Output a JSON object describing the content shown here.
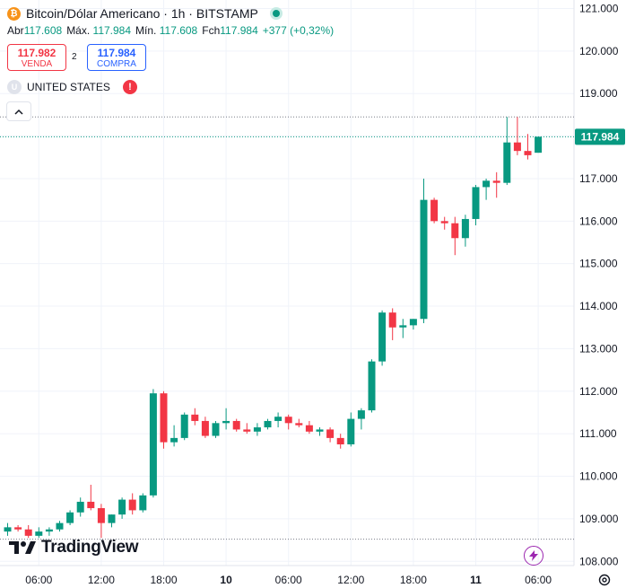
{
  "header": {
    "coin_glyph": "₿",
    "title": "Bitcoin/Dólar Americano · 1h · BITSTAMP",
    "ohlc": {
      "open_label": "Abr",
      "open": "117.608",
      "high_label": "Máx.",
      "high": "117.984",
      "low_label": "Mín.",
      "low": "117.608",
      "close_label": "Fch",
      "close": "117.984",
      "change": "+377 (+0,32%)"
    }
  },
  "trade": {
    "sell_price": "117.982",
    "sell_label": "VENDA",
    "spread": "2",
    "buy_price": "117.984",
    "buy_label": "COMPRA"
  },
  "country": {
    "badge": "U",
    "name": "UNITED STATES",
    "alert": "!"
  },
  "branding": {
    "logo_text": "TradingView"
  },
  "colors": {
    "up": "#089981",
    "down": "#f23645",
    "grid": "#f0f3fa",
    "text": "#131722"
  },
  "icons": {
    "collapse": "chevron-up-icon",
    "lightning": "lightning-icon",
    "settings": "gear-icon"
  },
  "chart_data": {
    "type": "candlestick",
    "title": "Bitcoin/Dólar Americano · 1h · BITSTAMP",
    "ylim": [
      107.9,
      121.2
    ],
    "y_ticks": [
      "108.000",
      "109.000",
      "110.000",
      "111.000",
      "112.000",
      "113.000",
      "114.000",
      "115.000",
      "116.000",
      "117.000",
      "118.000",
      "119.000",
      "120.000",
      "121.000"
    ],
    "y_tick_values": [
      108,
      109,
      110,
      111,
      112,
      113,
      114,
      115,
      116,
      117,
      118,
      119,
      120,
      121
    ],
    "x_ticks": [
      {
        "label": "06:00",
        "index": 3,
        "bold": false
      },
      {
        "label": "12:00",
        "index": 9,
        "bold": false
      },
      {
        "label": "18:00",
        "index": 15,
        "bold": false
      },
      {
        "label": "10",
        "index": 21,
        "bold": true
      },
      {
        "label": "06:00",
        "index": 27,
        "bold": false
      },
      {
        "label": "12:00",
        "index": 33,
        "bold": false
      },
      {
        "label": "18:00",
        "index": 39,
        "bold": false
      },
      {
        "label": "11",
        "index": 45,
        "bold": true
      },
      {
        "label": "06:00",
        "index": 51,
        "bold": false
      }
    ],
    "last_price": "117.984",
    "last_price_value": 117.984,
    "high_line_value": 118.45,
    "low_line_value": 108.52,
    "candles": [
      [
        108.7,
        108.9,
        108.6,
        108.8
      ],
      [
        108.8,
        108.85,
        108.7,
        108.75
      ],
      [
        108.75,
        108.85,
        108.55,
        108.6
      ],
      [
        108.6,
        108.8,
        108.55,
        108.7
      ],
      [
        108.7,
        108.8,
        108.6,
        108.75
      ],
      [
        108.75,
        108.95,
        108.7,
        108.9
      ],
      [
        108.9,
        109.2,
        108.85,
        109.15
      ],
      [
        109.15,
        109.5,
        109.05,
        109.4
      ],
      [
        109.4,
        109.8,
        109.2,
        109.25
      ],
      [
        109.25,
        109.35,
        108.55,
        108.9
      ],
      [
        108.9,
        109.1,
        108.8,
        109.1
      ],
      [
        109.1,
        109.5,
        109.0,
        109.45
      ],
      [
        109.45,
        109.6,
        109.1,
        109.2
      ],
      [
        109.2,
        109.6,
        109.15,
        109.55
      ],
      [
        109.55,
        112.05,
        109.5,
        111.95
      ],
      [
        111.95,
        112.0,
        110.65,
        110.8
      ],
      [
        110.8,
        111.2,
        110.7,
        110.9
      ],
      [
        110.9,
        111.5,
        110.85,
        111.45
      ],
      [
        111.45,
        111.6,
        111.2,
        111.3
      ],
      [
        111.3,
        111.4,
        110.9,
        110.95
      ],
      [
        110.95,
        111.3,
        110.9,
        111.25
      ],
      [
        111.25,
        111.6,
        111.1,
        111.3
      ],
      [
        111.3,
        111.35,
        111.05,
        111.1
      ],
      [
        111.1,
        111.25,
        111.0,
        111.05
      ],
      [
        111.05,
        111.25,
        110.95,
        111.15
      ],
      [
        111.15,
        111.35,
        111.1,
        111.3
      ],
      [
        111.3,
        111.5,
        111.15,
        111.4
      ],
      [
        111.4,
        111.45,
        111.1,
        111.25
      ],
      [
        111.25,
        111.35,
        111.15,
        111.2
      ],
      [
        111.2,
        111.3,
        111.0,
        111.05
      ],
      [
        111.05,
        111.15,
        110.95,
        111.1
      ],
      [
        111.1,
        111.15,
        110.8,
        110.9
      ],
      [
        110.9,
        111.0,
        110.65,
        110.75
      ],
      [
        110.75,
        111.5,
        110.7,
        111.35
      ],
      [
        111.35,
        111.6,
        111.1,
        111.55
      ],
      [
        111.55,
        112.75,
        111.5,
        112.7
      ],
      [
        112.7,
        113.9,
        112.6,
        113.85
      ],
      [
        113.85,
        113.95,
        113.2,
        113.5
      ],
      [
        113.5,
        113.7,
        113.25,
        113.55
      ],
      [
        113.55,
        113.7,
        113.45,
        113.7
      ],
      [
        113.7,
        117.0,
        113.6,
        116.5
      ],
      [
        116.5,
        116.55,
        115.95,
        116.0
      ],
      [
        116.0,
        116.1,
        115.8,
        115.95
      ],
      [
        115.95,
        116.1,
        115.2,
        115.6
      ],
      [
        115.6,
        116.15,
        115.4,
        116.05
      ],
      [
        116.05,
        116.85,
        115.9,
        116.8
      ],
      [
        116.8,
        117.0,
        116.5,
        116.95
      ],
      [
        116.95,
        117.15,
        116.55,
        116.9
      ],
      [
        116.9,
        118.45,
        116.85,
        117.85
      ],
      [
        117.85,
        118.45,
        117.55,
        117.65
      ],
      [
        117.65,
        118.05,
        117.45,
        117.55
      ],
      [
        117.608,
        117.984,
        117.608,
        117.984
      ]
    ]
  }
}
